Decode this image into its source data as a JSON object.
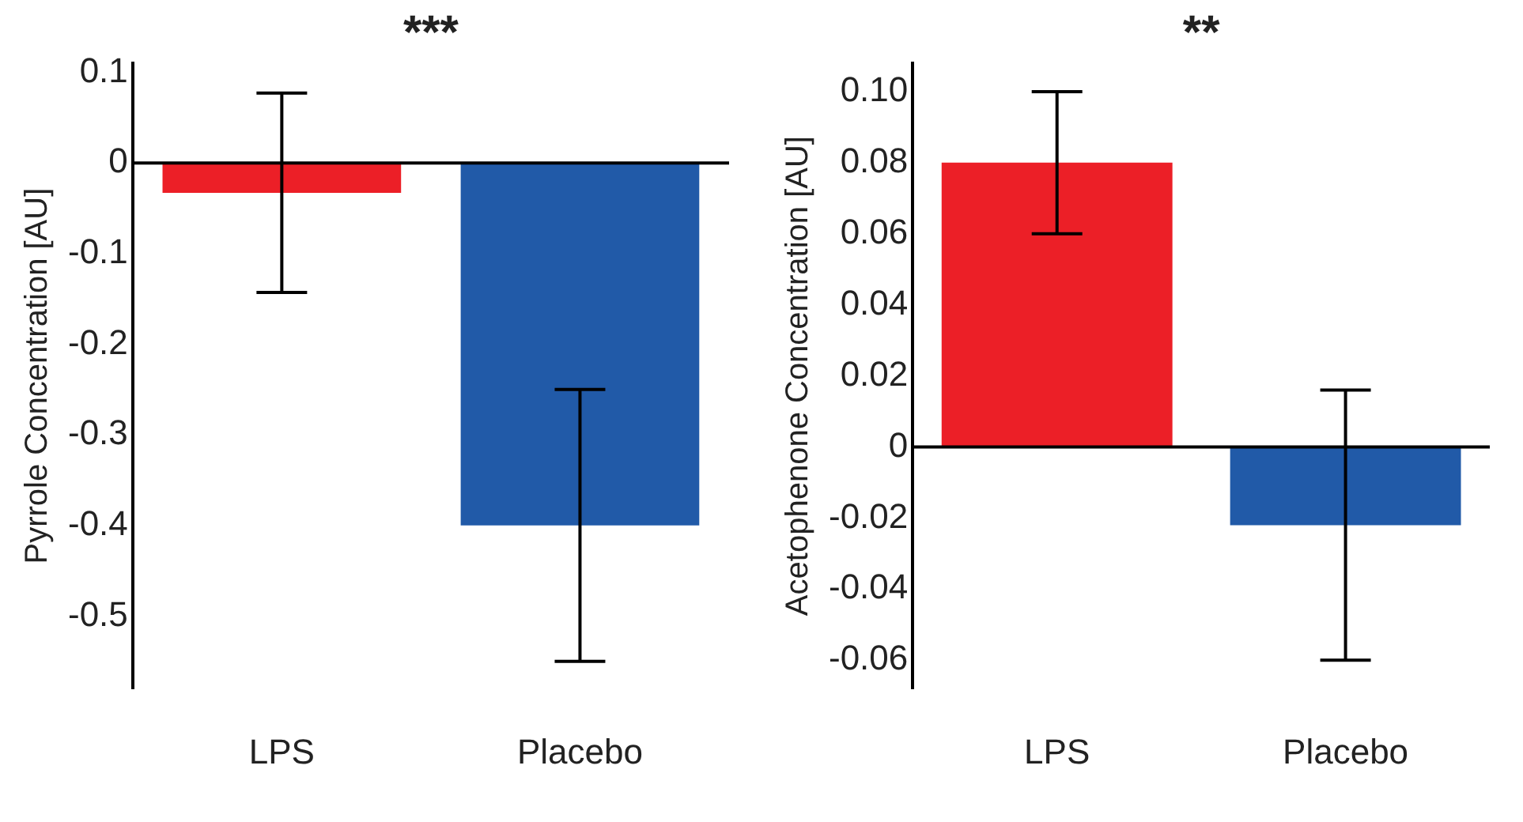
{
  "chart_data": [
    {
      "type": "bar",
      "categories": [
        "LPS",
        "Placebo"
      ],
      "ylabel": "Pyrrole Concentration [AU]",
      "annotations": [
        "***"
      ],
      "colors": [
        "#ec1f27",
        "#215aa8"
      ],
      "values": [
        -0.033,
        -0.4
      ],
      "errors": [
        0.11,
        0.15
      ],
      "ylim": [
        -0.58,
        0.11
      ],
      "yticks": [
        0.1,
        0,
        -0.1,
        -0.2,
        -0.3,
        -0.4,
        -0.5
      ],
      "legend": false
    },
    {
      "type": "bar",
      "categories": [
        "LPS",
        "Placebo"
      ],
      "ylabel": "Acetophenone Concentration [AU]",
      "annotations": [
        "**"
      ],
      "colors": [
        "#ec1f27",
        "#215aa8"
      ],
      "values": [
        0.08,
        -0.022
      ],
      "errors": [
        0.02,
        0.038
      ],
      "ylim": [
        -0.068,
        0.108
      ],
      "yticks": [
        {
          "value": 0.1,
          "label": "0.10"
        },
        {
          "value": 0.08,
          "label": "0.08"
        },
        {
          "value": 0.06,
          "label": "0.06"
        },
        {
          "value": 0.04,
          "label": "0.04"
        },
        {
          "value": 0.02,
          "label": "0.02"
        },
        0,
        {
          "value": -0.02,
          "label": "-0.02"
        },
        {
          "value": -0.04,
          "label": "-0.04"
        },
        {
          "value": -0.06,
          "label": "-0.06"
        }
      ],
      "legend": false
    }
  ]
}
